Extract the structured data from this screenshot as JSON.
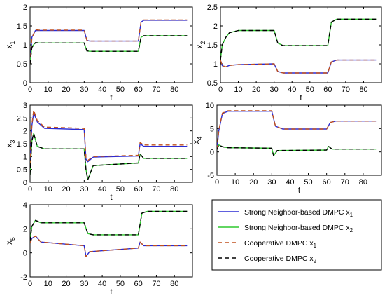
{
  "chart_data": [
    {
      "type": "line",
      "xlabel": "t",
      "ylabel": "x",
      "ylabel_sub": "1",
      "xlim": [
        0,
        90
      ],
      "ylim": [
        0,
        2
      ],
      "xticks": [
        "0",
        "10",
        "20",
        "30",
        "40",
        "50",
        "60",
        "70",
        "80"
      ],
      "yticks": [
        "0",
        "0.5",
        "1",
        "1.5",
        "2"
      ],
      "series": [
        {
          "key": "sn_x1",
          "x": [
            0,
            1,
            3,
            5,
            30,
            31.5,
            33,
            60,
            61.5,
            63,
            87
          ],
          "values": [
            0.5,
            1.2,
            1.38,
            1.38,
            1.38,
            1.12,
            1.1,
            1.1,
            1.6,
            1.65,
            1.65
          ]
        },
        {
          "key": "sn_x2",
          "x": [
            0,
            1,
            3,
            5,
            30,
            31.5,
            33,
            60,
            61.5,
            63,
            87
          ],
          "values": [
            0.5,
            0.95,
            1.06,
            1.05,
            1.05,
            0.84,
            0.83,
            0.83,
            1.2,
            1.24,
            1.24
          ]
        },
        {
          "key": "coop_x1",
          "x": [
            0,
            1,
            3,
            5,
            30,
            31.5,
            33,
            60,
            61.5,
            63,
            87
          ],
          "values": [
            0.5,
            1.18,
            1.4,
            1.39,
            1.39,
            1.12,
            1.1,
            1.1,
            1.6,
            1.66,
            1.66
          ]
        },
        {
          "key": "coop_x2",
          "x": [
            0,
            1,
            3,
            5,
            30,
            31.5,
            33,
            60,
            61.5,
            63,
            87
          ],
          "values": [
            0.5,
            0.93,
            1.06,
            1.05,
            1.05,
            0.84,
            0.83,
            0.83,
            1.2,
            1.24,
            1.24
          ]
        }
      ]
    },
    {
      "type": "line",
      "xlabel": "t",
      "ylabel": "x",
      "ylabel_sub": "2",
      "xlim": [
        0,
        90
      ],
      "ylim": [
        0.5,
        2.5
      ],
      "xticks": [
        "0",
        "10",
        "20",
        "30",
        "40",
        "50",
        "60",
        "70",
        "80"
      ],
      "yticks": [
        "0.5",
        "1",
        "1.5",
        "2",
        "2.5"
      ],
      "series": [
        {
          "key": "sn_x1",
          "x": [
            0,
            1,
            3,
            5,
            10,
            30,
            32,
            35,
            60,
            62,
            65,
            87
          ],
          "values": [
            1.1,
            0.95,
            0.92,
            0.96,
            0.98,
            1.0,
            0.8,
            0.76,
            0.76,
            1.05,
            1.1,
            1.1
          ]
        },
        {
          "key": "sn_x2",
          "x": [
            0,
            1,
            3,
            5,
            10,
            30,
            32,
            35,
            60,
            62,
            65,
            87
          ],
          "values": [
            1.1,
            1.5,
            1.7,
            1.82,
            1.88,
            1.88,
            1.55,
            1.48,
            1.48,
            2.1,
            2.18,
            2.18
          ]
        },
        {
          "key": "coop_x1",
          "x": [
            0,
            1,
            3,
            5,
            10,
            30,
            32,
            35,
            60,
            62,
            65,
            87
          ],
          "values": [
            1.1,
            0.95,
            0.92,
            0.96,
            0.98,
            1.0,
            0.8,
            0.76,
            0.76,
            1.05,
            1.1,
            1.1
          ]
        },
        {
          "key": "coop_x2",
          "x": [
            0,
            1,
            3,
            5,
            10,
            30,
            32,
            35,
            60,
            62,
            65,
            87
          ],
          "values": [
            1.1,
            1.5,
            1.7,
            1.82,
            1.88,
            1.88,
            1.55,
            1.48,
            1.48,
            2.1,
            2.18,
            2.18
          ]
        }
      ]
    },
    {
      "type": "line",
      "xlabel": "t",
      "ylabel": "x",
      "ylabel_sub": "3",
      "xlim": [
        0,
        90
      ],
      "ylim": [
        0,
        3
      ],
      "xticks": [
        "0",
        "10",
        "20",
        "30",
        "40",
        "50",
        "60",
        "70",
        "80"
      ],
      "yticks": [
        "0",
        "0.5",
        "1",
        "1.5",
        "2",
        "2.5",
        "3"
      ],
      "series": [
        {
          "key": "sn_x1",
          "x": [
            0,
            1,
            2,
            4,
            8,
            30,
            31,
            32,
            35,
            60,
            61,
            63,
            87
          ],
          "values": [
            0.7,
            2.2,
            2.7,
            2.35,
            2.1,
            2.05,
            0.9,
            0.8,
            0.98,
            1.02,
            1.5,
            1.4,
            1.4
          ]
        },
        {
          "key": "sn_x2",
          "x": [
            0,
            1,
            2,
            4,
            8,
            30,
            31,
            32,
            35,
            60,
            61,
            63,
            87
          ],
          "values": [
            0.3,
            1.6,
            1.9,
            1.4,
            1.3,
            1.3,
            0.5,
            0.1,
            0.65,
            0.75,
            1.1,
            0.93,
            0.93
          ]
        },
        {
          "key": "coop_x1",
          "x": [
            0,
            1,
            2,
            4,
            8,
            30,
            31,
            32,
            35,
            60,
            61,
            63,
            87
          ],
          "values": [
            0.7,
            2.25,
            2.8,
            2.4,
            2.15,
            2.1,
            0.95,
            0.85,
            1.0,
            1.05,
            1.55,
            1.45,
            1.45
          ]
        },
        {
          "key": "coop_x2",
          "x": [
            0,
            1,
            2,
            4,
            8,
            30,
            31,
            32,
            35,
            60,
            61,
            63,
            87
          ],
          "values": [
            0.3,
            1.6,
            1.9,
            1.4,
            1.3,
            1.3,
            0.5,
            0.1,
            0.65,
            0.75,
            1.1,
            0.93,
            0.93
          ]
        }
      ]
    },
    {
      "type": "line",
      "xlabel": "t",
      "ylabel": "x",
      "ylabel_sub": "4",
      "xlim": [
        0,
        90
      ],
      "ylim": [
        -5,
        10
      ],
      "xticks": [
        "0",
        "10",
        "20",
        "30",
        "40",
        "50",
        "60",
        "70",
        "80"
      ],
      "yticks": [
        "-5",
        "0",
        "5",
        "10"
      ],
      "series": [
        {
          "key": "sn_x1",
          "x": [
            0,
            1,
            3,
            6,
            30,
            32,
            36,
            60,
            62,
            65,
            87
          ],
          "values": [
            0.5,
            4.5,
            8.2,
            8.7,
            8.7,
            5.5,
            4.9,
            4.9,
            6.3,
            6.6,
            6.6
          ]
        },
        {
          "key": "sn_x2",
          "x": [
            0,
            1,
            3,
            6,
            30,
            31,
            33,
            60,
            61,
            63,
            87
          ],
          "values": [
            0.5,
            1.5,
            1.1,
            0.9,
            0.8,
            -0.8,
            0.3,
            0.4,
            1.2,
            0.6,
            0.6
          ]
        },
        {
          "key": "coop_x1",
          "x": [
            0,
            1,
            3,
            6,
            30,
            32,
            36,
            60,
            62,
            65,
            87
          ],
          "values": [
            0.5,
            4.6,
            8.3,
            8.8,
            8.8,
            5.5,
            4.9,
            4.9,
            6.3,
            6.6,
            6.6
          ]
        },
        {
          "key": "coop_x2",
          "x": [
            0,
            1,
            3,
            6,
            30,
            31,
            33,
            60,
            61,
            63,
            87
          ],
          "values": [
            0.5,
            1.5,
            1.1,
            0.9,
            0.8,
            -0.8,
            0.3,
            0.4,
            1.2,
            0.6,
            0.6
          ]
        }
      ]
    },
    {
      "type": "line",
      "xlabel": "t",
      "ylabel": "x",
      "ylabel_sub": "5",
      "xlim": [
        0,
        90
      ],
      "ylim": [
        -2,
        4
      ],
      "xticks": [
        "0",
        "10",
        "20",
        "30",
        "40",
        "50",
        "60",
        "70",
        "80"
      ],
      "yticks": [
        "-2",
        "0",
        "2",
        "4"
      ],
      "series": [
        {
          "key": "sn_x1",
          "x": [
            0,
            1,
            3,
            6,
            30,
            31,
            33,
            60,
            61,
            63,
            87
          ],
          "values": [
            0.8,
            1.2,
            1.4,
            0.9,
            0.6,
            -0.3,
            0.1,
            0.4,
            0.9,
            0.6,
            0.6
          ]
        },
        {
          "key": "sn_x2",
          "x": [
            0,
            1,
            3,
            6,
            30,
            32,
            35,
            60,
            62,
            65,
            87
          ],
          "values": [
            1.0,
            2.2,
            2.7,
            2.5,
            2.5,
            1.6,
            1.5,
            1.5,
            3.3,
            3.45,
            3.45
          ]
        },
        {
          "key": "coop_x1",
          "x": [
            0,
            1,
            3,
            6,
            30,
            31,
            33,
            60,
            61,
            63,
            87
          ],
          "values": [
            0.8,
            1.2,
            1.4,
            0.9,
            0.6,
            -0.3,
            0.1,
            0.4,
            0.9,
            0.6,
            0.6
          ]
        },
        {
          "key": "coop_x2",
          "x": [
            0,
            1,
            3,
            6,
            30,
            32,
            35,
            60,
            62,
            65,
            87
          ],
          "values": [
            1.0,
            2.2,
            2.7,
            2.5,
            2.5,
            1.6,
            1.5,
            1.5,
            3.3,
            3.45,
            3.45
          ]
        }
      ]
    }
  ],
  "legend": {
    "placement": "bottom-right",
    "entries": [
      {
        "key": "sn_x1",
        "label": "Strong Neighbor-based DMPC x",
        "sub": "1",
        "color": "#2b2bd4",
        "dash": "solid"
      },
      {
        "key": "sn_x2",
        "label": "Strong Neighbor-based DMPC x",
        "sub": "2",
        "color": "#2ec82e",
        "dash": "solid"
      },
      {
        "key": "coop_x1",
        "label": "Cooperative DMPC x",
        "sub": "1",
        "color": "#c0501e",
        "dash": "dashed"
      },
      {
        "key": "coop_x2",
        "label": "Cooperative DMPC x",
        "sub": "2",
        "color": "#000000",
        "dash": "dashed"
      }
    ]
  }
}
